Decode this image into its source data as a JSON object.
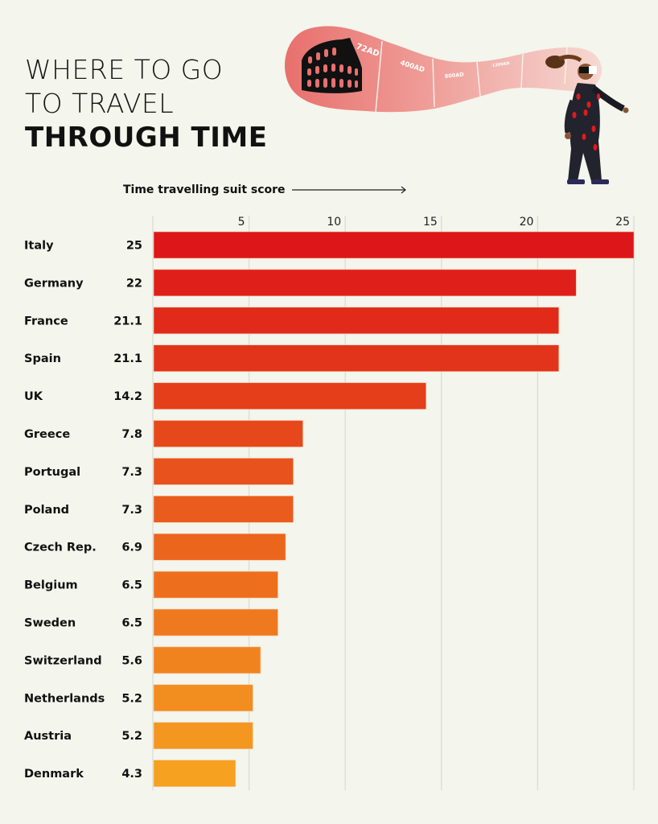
{
  "header": {
    "title_line1": "WHERE TO GO",
    "title_line2": "TO TRAVEL",
    "title_line3": "THROUGH TIME"
  },
  "illustration": {
    "era_labels": [
      "72AD",
      "400AD",
      "800AD",
      "1200AD"
    ],
    "icons": [
      "colosseum-icon",
      "time-traveller-figure"
    ]
  },
  "colors": {
    "background": "#f4f5ec",
    "bar_top": "#dd1619",
    "bar_bottom": "#f6a120",
    "gridline": "#dcdcd4",
    "portal": "#e87470"
  },
  "chart_data": {
    "type": "bar",
    "orientation": "horizontal",
    "title": "WHERE TO GO TO TRAVEL THROUGH TIME",
    "xlabel": "Time travelling suit score",
    "ylabel": "",
    "xlim": [
      0,
      25
    ],
    "xticks": [
      5,
      10,
      15,
      20,
      25
    ],
    "grid": true,
    "categories": [
      "Italy",
      "Germany",
      "France",
      "Spain",
      "UK",
      "Greece",
      "Portugal",
      "Poland",
      "Czech Rep.",
      "Belgium",
      "Sweden",
      "Switzerland",
      "Netherlands",
      "Austria",
      "Denmark"
    ],
    "values": [
      25,
      22,
      21.1,
      21.1,
      14.2,
      7.8,
      7.3,
      7.3,
      6.9,
      6.5,
      6.5,
      5.6,
      5.2,
      5.2,
      4.3
    ],
    "value_labels": [
      "25",
      "22",
      "21.1",
      "21.1",
      "14.2",
      "7.8",
      "7.3",
      "7.3",
      "6.9",
      "6.5",
      "6.5",
      "5.6",
      "5.2",
      "5.2",
      "4.3"
    ]
  }
}
